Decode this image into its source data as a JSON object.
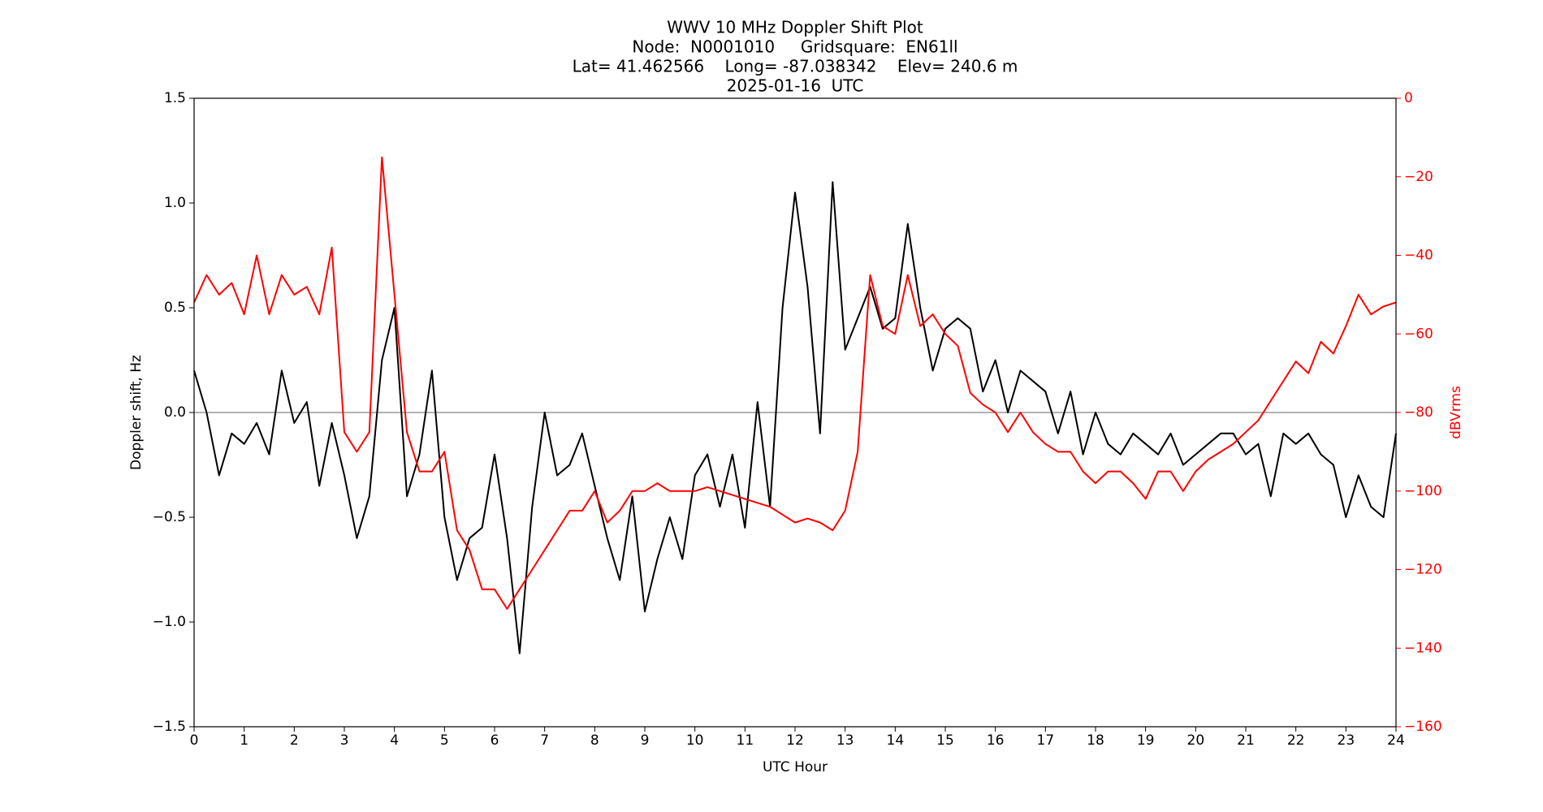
{
  "chart_data": {
    "type": "line",
    "title": [
      "WWV 10 MHz Doppler Shift Plot",
      "Node:  N0001010     Gridsquare:  EN61ll",
      "Lat= 41.462566    Long= -87.038342    Elev= 240.6 m",
      "2025-01-16  UTC"
    ],
    "xlabel": "UTC Hour",
    "ylabel": "Doppler shift, Hz",
    "y2label": "dBVrms",
    "x": [
      0,
      0.25,
      0.5,
      0.75,
      1,
      1.25,
      1.5,
      1.75,
      2,
      2.25,
      2.5,
      2.75,
      3,
      3.25,
      3.5,
      3.75,
      4,
      4.25,
      4.5,
      4.75,
      5,
      5.25,
      5.5,
      5.75,
      6,
      6.25,
      6.5,
      6.75,
      7,
      7.25,
      7.5,
      7.75,
      8,
      8.25,
      8.5,
      8.75,
      9,
      9.25,
      9.5,
      9.75,
      10,
      10.25,
      10.5,
      10.75,
      11,
      11.25,
      11.5,
      11.75,
      12,
      12.25,
      12.5,
      12.75,
      13,
      13.25,
      13.5,
      13.75,
      14,
      14.25,
      14.5,
      14.75,
      15,
      15.25,
      15.5,
      15.75,
      16,
      16.25,
      16.5,
      16.75,
      17,
      17.25,
      17.5,
      17.75,
      18,
      18.25,
      18.5,
      18.75,
      19,
      19.25,
      19.5,
      19.75,
      20,
      20.25,
      20.5,
      20.75,
      21,
      21.25,
      21.5,
      21.75,
      22,
      22.25,
      22.5,
      22.75,
      23,
      23.25,
      23.5,
      23.75,
      24
    ],
    "series": [
      {
        "color": "#000000",
        "values": [
          0.2,
          0.0,
          -0.3,
          -0.1,
          -0.15,
          -0.05,
          -0.2,
          0.2,
          -0.05,
          0.05,
          -0.35,
          -0.05,
          -0.3,
          -0.6,
          -0.4,
          0.25,
          0.5,
          -0.4,
          -0.2,
          0.2,
          -0.5,
          -0.8,
          -0.6,
          -0.55,
          -0.2,
          -0.6,
          -1.15,
          -0.45,
          0.0,
          -0.3,
          -0.25,
          -0.1,
          -0.35,
          -0.6,
          -0.8,
          -0.4,
          -0.95,
          -0.7,
          -0.5,
          -0.7,
          -0.3,
          -0.2,
          -0.45,
          -0.2,
          -0.55,
          0.05,
          -0.45,
          0.5,
          1.05,
          0.6,
          -0.1,
          1.1,
          0.3,
          0.45,
          0.6,
          0.4,
          0.45,
          0.9,
          0.5,
          0.2,
          0.4,
          0.45,
          0.4,
          0.1,
          0.25,
          0.0,
          0.2,
          0.15,
          0.1,
          -0.1,
          0.1,
          -0.2,
          0.0,
          -0.15,
          -0.2,
          -0.1,
          -0.15,
          -0.2,
          -0.1,
          -0.25,
          -0.2,
          -0.15,
          -0.1,
          -0.1,
          -0.2,
          -0.15,
          -0.4,
          -0.1,
          -0.15,
          -0.1,
          -0.2,
          -0.25,
          -0.5,
          -0.3,
          -0.45,
          -0.5,
          -0.1
        ]
      },
      {
        "color": "#ff0000",
        "axis": "y2",
        "values": [
          -52,
          -45,
          -50,
          -47,
          -55,
          -40,
          -55,
          -45,
          -50,
          -48,
          -55,
          -38,
          -85,
          -90,
          -85,
          -15,
          -50,
          -85,
          -95,
          -95,
          -90,
          -110,
          -115,
          -125,
          -125,
          -130,
          -125,
          -120,
          -115,
          -110,
          -105,
          -105,
          -100,
          -108,
          -105,
          -100,
          -100,
          -98,
          -100,
          -100,
          -100,
          -99,
          -100,
          -101,
          -102,
          -103,
          -104,
          -106,
          -108,
          -107,
          -108,
          -110,
          -105,
          -90,
          -45,
          -58,
          -60,
          -45,
          -58,
          -55,
          -60,
          -63,
          -75,
          -78,
          -80,
          -85,
          -80,
          -85,
          -88,
          -90,
          -90,
          -95,
          -98,
          -95,
          -95,
          -98,
          -102,
          -95,
          -95,
          -100,
          -95,
          -92,
          -90,
          -88,
          -85,
          -82,
          -77,
          -72,
          -67,
          -70,
          -62,
          -65,
          -58,
          -50,
          -55,
          -53,
          -52
        ]
      }
    ],
    "xlim": [
      0,
      24
    ],
    "xticks": [
      0,
      1,
      2,
      3,
      4,
      5,
      6,
      7,
      8,
      9,
      10,
      11,
      12,
      13,
      14,
      15,
      16,
      17,
      18,
      19,
      20,
      21,
      22,
      23,
      24
    ],
    "ylim": [
      -1.5,
      1.5
    ],
    "yticks": [
      {
        "value": -1.5,
        "label": "−1.5"
      },
      {
        "value": -1.0,
        "label": "−1.0"
      },
      {
        "value": -0.5,
        "label": "−0.5"
      },
      {
        "value": 0,
        "label": "0.0"
      },
      {
        "value": 0.5,
        "label": "0.5"
      },
      {
        "value": 1,
        "label": "1.0"
      },
      {
        "value": 1.5,
        "label": "1.5"
      }
    ],
    "y2lim": [
      -160,
      0
    ],
    "y2ticks": [
      {
        "value": -160,
        "label": "−160"
      },
      {
        "value": -140,
        "label": "−140"
      },
      {
        "value": -120,
        "label": "−120"
      },
      {
        "value": -100,
        "label": "−100"
      },
      {
        "value": -80,
        "label": "−80"
      },
      {
        "value": -60,
        "label": "−60"
      },
      {
        "value": -40,
        "label": "−40"
      },
      {
        "value": -20,
        "label": "−20"
      },
      0
    ],
    "y2color": "#ff0000",
    "hline": 0,
    "hline_color": "#999999"
  }
}
